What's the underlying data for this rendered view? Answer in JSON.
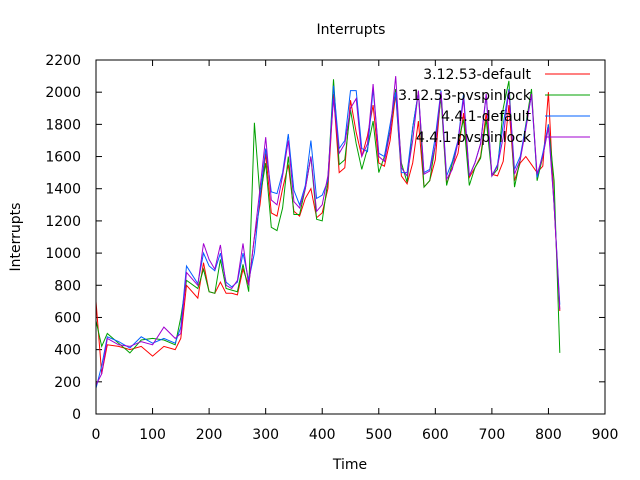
{
  "chart_data": {
    "type": "line",
    "title": "Interrupts",
    "xlabel": "Time",
    "ylabel": "Interrupts",
    "xlim": [
      0,
      900
    ],
    "ylim": [
      0,
      2200
    ],
    "xticks": [
      0,
      100,
      200,
      300,
      400,
      500,
      600,
      700,
      800,
      900
    ],
    "yticks": [
      0,
      200,
      400,
      600,
      800,
      1000,
      1200,
      1400,
      1600,
      1800,
      2000,
      2200
    ],
    "grid": false,
    "legend_position": "top-right",
    "series": [
      {
        "name": "3.12.53-default",
        "color": "#ff0000",
        "x": [
          0,
          10,
          20,
          40,
          60,
          80,
          100,
          120,
          140,
          150,
          160,
          180,
          190,
          200,
          210,
          220,
          230,
          240,
          250,
          260,
          270,
          280,
          290,
          300,
          310,
          320,
          330,
          340,
          350,
          360,
          370,
          380,
          390,
          400,
          410,
          420,
          430,
          440,
          450,
          460,
          470,
          480,
          490,
          500,
          510,
          520,
          530,
          540,
          550,
          560,
          570,
          580,
          590,
          600,
          610,
          620,
          630,
          640,
          650,
          660,
          670,
          680,
          690,
          700,
          710,
          720,
          730,
          740,
          750,
          760,
          770,
          780,
          790,
          800,
          810,
          820
        ],
        "y": [
          700,
          250,
          430,
          420,
          400,
          420,
          360,
          420,
          400,
          470,
          800,
          720,
          940,
          760,
          750,
          820,
          750,
          750,
          740,
          900,
          800,
          1100,
          1300,
          1620,
          1250,
          1230,
          1400,
          1550,
          1260,
          1230,
          1340,
          1400,
          1220,
          1250,
          1400,
          1990,
          1500,
          1530,
          1950,
          1750,
          1600,
          1730,
          1920,
          1560,
          1540,
          1700,
          1990,
          1480,
          1430,
          1560,
          1820,
          1410,
          1450,
          1580,
          2000,
          1430,
          1530,
          1620,
          1870,
          1470,
          1530,
          1600,
          1870,
          1490,
          1480,
          1570,
          1920,
          1450,
          1560,
          1600,
          1550,
          1500,
          1540,
          2000,
          1300,
          640
        ]
      },
      {
        "name": "3.12.53-pvspinlock",
        "color": "#00a000",
        "x": [
          0,
          10,
          20,
          40,
          60,
          80,
          100,
          120,
          140,
          150,
          160,
          180,
          190,
          200,
          210,
          220,
          230,
          240,
          250,
          260,
          270,
          280,
          290,
          300,
          310,
          320,
          330,
          340,
          350,
          360,
          370,
          380,
          390,
          400,
          410,
          420,
          430,
          440,
          450,
          460,
          470,
          480,
          490,
          500,
          510,
          520,
          530,
          540,
          550,
          560,
          570,
          580,
          590,
          600,
          610,
          620,
          630,
          640,
          650,
          660,
          670,
          680,
          690,
          700,
          710,
          720,
          730,
          740,
          750,
          760,
          770,
          780,
          790,
          800,
          810,
          820
        ],
        "y": [
          580,
          420,
          500,
          440,
          380,
          460,
          470,
          460,
          430,
          600,
          830,
          780,
          900,
          760,
          750,
          960,
          780,
          770,
          760,
          930,
          760,
          1810,
          1350,
          1560,
          1160,
          1140,
          1280,
          1600,
          1240,
          1240,
          1400,
          1600,
          1210,
          1200,
          1450,
          2080,
          1550,
          1580,
          1890,
          1680,
          1520,
          1650,
          1820,
          1500,
          1600,
          1760,
          2020,
          1560,
          1440,
          1780,
          2000,
          1410,
          1450,
          1670,
          1970,
          1420,
          1560,
          1690,
          1830,
          1420,
          1530,
          1590,
          1830,
          1480,
          1520,
          1900,
          2070,
          1410,
          1580,
          1800,
          2020,
          1450,
          1600,
          1800,
          1450,
          380
        ]
      },
      {
        "name": "4.4.1-default",
        "color": "#0060ff",
        "x": [
          0,
          10,
          20,
          40,
          60,
          80,
          100,
          120,
          140,
          150,
          160,
          180,
          190,
          200,
          210,
          220,
          230,
          240,
          250,
          260,
          270,
          280,
          290,
          300,
          310,
          320,
          330,
          340,
          350,
          360,
          370,
          380,
          390,
          400,
          410,
          420,
          430,
          440,
          450,
          460,
          470,
          480,
          490,
          500,
          510,
          520,
          530,
          540,
          550,
          560,
          570,
          580,
          590,
          600,
          610,
          620,
          630,
          640,
          650,
          660,
          670,
          680,
          690,
          700,
          710,
          720,
          730,
          740,
          750,
          760,
          770,
          780,
          790,
          800,
          810,
          820
        ],
        "y": [
          160,
          300,
          480,
          450,
          410,
          480,
          440,
          470,
          440,
          540,
          920,
          810,
          1000,
          920,
          890,
          1000,
          820,
          790,
          820,
          1000,
          830,
          1000,
          1350,
          1650,
          1380,
          1370,
          1500,
          1740,
          1390,
          1300,
          1420,
          1700,
          1340,
          1360,
          1450,
          2040,
          1650,
          1700,
          2010,
          2010,
          1650,
          1630,
          2020,
          1620,
          1600,
          1800,
          2000,
          1500,
          1500,
          1780,
          2000,
          1500,
          1520,
          1720,
          2010,
          1480,
          1570,
          1700,
          1990,
          1480,
          1560,
          1680,
          1980,
          1480,
          1550,
          1800,
          2020,
          1520,
          1600,
          1790,
          1980,
          1470,
          1620,
          1800,
          1300,
          680
        ]
      },
      {
        "name": "4.4.1-pvspinlock",
        "color": "#a000d0",
        "x": [
          0,
          10,
          20,
          40,
          60,
          80,
          100,
          120,
          140,
          150,
          160,
          180,
          190,
          200,
          210,
          220,
          230,
          240,
          250,
          260,
          270,
          280,
          290,
          300,
          310,
          320,
          330,
          340,
          350,
          360,
          370,
          380,
          390,
          400,
          410,
          420,
          430,
          440,
          450,
          460,
          470,
          480,
          490,
          500,
          510,
          520,
          530,
          540,
          550,
          560,
          570,
          580,
          590,
          600,
          610,
          620,
          630,
          640,
          650,
          660,
          670,
          680,
          690,
          700,
          710,
          720,
          730,
          740,
          750,
          760,
          770,
          780,
          790,
          800,
          810,
          820
        ],
        "y": [
          180,
          250,
          470,
          430,
          420,
          450,
          430,
          540,
          470,
          500,
          880,
          800,
          1060,
          960,
          900,
          1050,
          800,
          780,
          830,
          1060,
          800,
          1100,
          1400,
          1720,
          1330,
          1300,
          1480,
          1700,
          1320,
          1280,
          1400,
          1600,
          1260,
          1300,
          1480,
          1960,
          1620,
          1680,
          1900,
          1960,
          1600,
          1680,
          2050,
          1600,
          1570,
          1750,
          2100,
          1530,
          1480,
          1700,
          2010,
          1490,
          1510,
          1670,
          2000,
          1460,
          1520,
          1690,
          1960,
          1480,
          1560,
          1680,
          1990,
          1480,
          1540,
          1720,
          2010,
          1490,
          1580,
          1770,
          1990,
          1490,
          1600,
          1780,
          1300,
          650
        ]
      }
    ]
  }
}
